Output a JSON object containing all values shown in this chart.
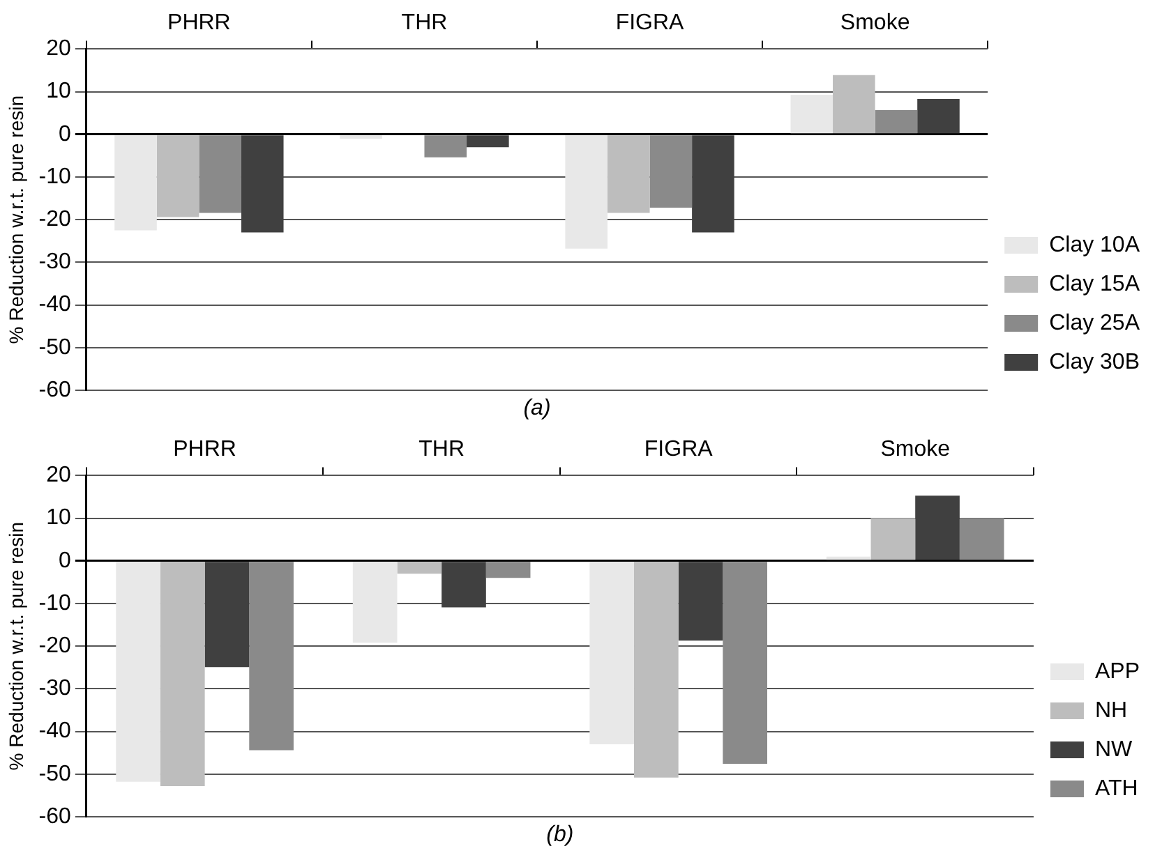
{
  "chart_data": [
    {
      "type": "bar",
      "categories": [
        "PHRR",
        "THR",
        "FIGRA",
        "Smoke"
      ],
      "xlabel": "(a)",
      "ylabel": "% Reduction w.r.t. pure resin",
      "ylim": [
        -60,
        20
      ],
      "yticks": [
        -60,
        -50,
        -40,
        -30,
        -20,
        -10,
        0,
        10,
        20
      ],
      "grid": "y",
      "legend": "bottom right",
      "series": [
        {
          "name": "Clay 10A",
          "color": "#e8e8e8",
          "values": [
            -22.5,
            -1,
            -26.8,
            9.3
          ]
        },
        {
          "name": "Clay 15A",
          "color": "#bdbdbd",
          "values": [
            -19.4,
            0,
            -18.4,
            13.9
          ]
        },
        {
          "name": "Clay 25A",
          "color": "#8a8a8a",
          "values": [
            -18.4,
            -5.4,
            -17.2,
            5.7
          ]
        },
        {
          "name": "Clay 30B",
          "color": "#404040",
          "values": [
            -23,
            -3,
            -23,
            8.3
          ]
        }
      ]
    },
    {
      "type": "bar",
      "categories": [
        "PHRR",
        "THR",
        "FIGRA",
        "Smoke"
      ],
      "xlabel": "(b)",
      "ylabel": "% Reduction w.r.t. pure resin",
      "ylim": [
        -60,
        20
      ],
      "yticks": [
        -60,
        -50,
        -40,
        -30,
        -20,
        -10,
        0,
        10,
        20
      ],
      "grid": "y",
      "legend": "bottom right",
      "series": [
        {
          "name": "APP",
          "color": "#e8e8e8",
          "values": [
            -51.8,
            -19.2,
            -43,
            1
          ]
        },
        {
          "name": "NH",
          "color": "#bdbdbd",
          "values": [
            -52.8,
            -3,
            -50.8,
            10
          ]
        },
        {
          "name": "NW",
          "color": "#404040",
          "values": [
            -24.9,
            -10.9,
            -18.7,
            15.3
          ]
        },
        {
          "name": "ATH",
          "color": "#8a8a8a",
          "values": [
            -44.4,
            -4,
            -47.6,
            10
          ]
        }
      ]
    }
  ]
}
